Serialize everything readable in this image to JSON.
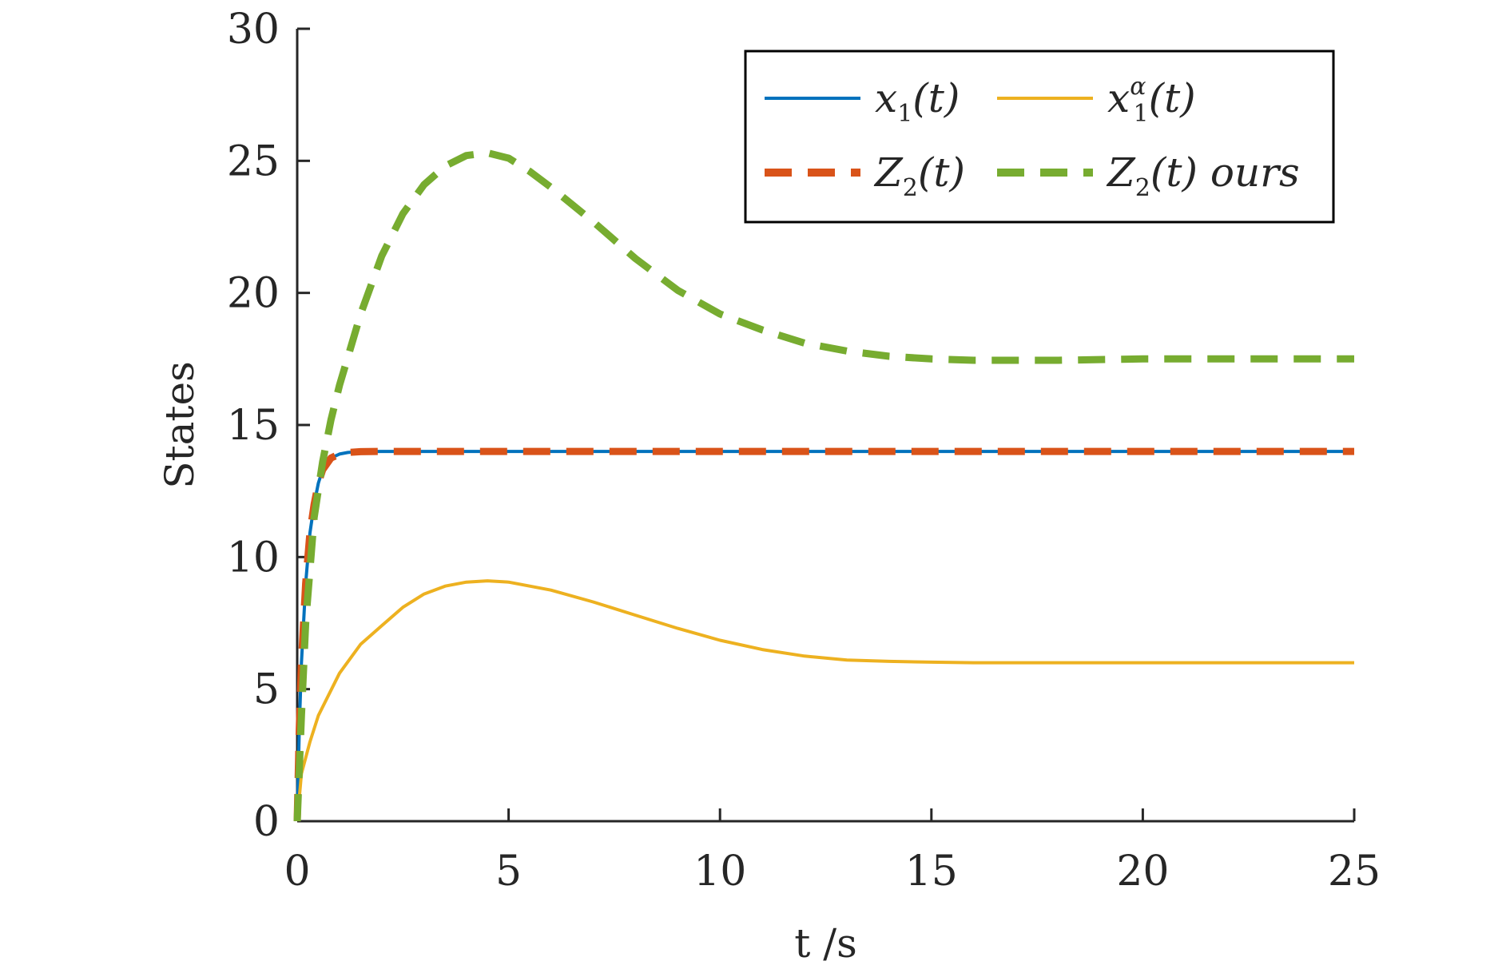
{
  "chart_data": {
    "type": "line",
    "title": "",
    "xlabel": "t /s",
    "ylabel": "States",
    "xlim": [
      0,
      25
    ],
    "ylim": [
      0,
      30
    ],
    "xticks": [
      0,
      5,
      10,
      15,
      20,
      25
    ],
    "yticks": [
      0,
      5,
      10,
      15,
      20,
      25,
      30
    ],
    "xtick_labels": [
      "0",
      "5",
      "10",
      "15",
      "20",
      "25"
    ],
    "ytick_labels": [
      "0",
      "5",
      "10",
      "15",
      "20",
      "25",
      "30"
    ],
    "grid": false,
    "legend_position": "top-right",
    "legend_columns": 2,
    "series": [
      {
        "name": "x1(t)",
        "color": "#0072BD",
        "style": "solid",
        "x": [
          0,
          0.05,
          0.1,
          0.2,
          0.3,
          0.4,
          0.5,
          0.6,
          0.8,
          1.0,
          1.2,
          1.5,
          2,
          3,
          5,
          10,
          15,
          20,
          25
        ],
        "y": [
          0,
          3.5,
          6.0,
          9.0,
          10.9,
          12.0,
          12.8,
          13.3,
          13.75,
          13.9,
          13.96,
          13.99,
          14.0,
          14.0,
          14.0,
          14.0,
          14.0,
          14.0,
          14.0
        ]
      },
      {
        "name": "x1α(t)",
        "color": "#EDB120",
        "style": "solid",
        "x": [
          0,
          0.1,
          0.3,
          0.5,
          1.0,
          1.5,
          2.0,
          2.5,
          3.0,
          3.5,
          4.0,
          4.5,
          5.0,
          6.0,
          7.0,
          8.0,
          9.0,
          10.0,
          11.0,
          12.0,
          13.0,
          14.0,
          15.0,
          16.0,
          18.0,
          20.0,
          22.0,
          25.0
        ],
        "y": [
          0,
          1.8,
          3.0,
          4.0,
          5.6,
          6.7,
          7.4,
          8.1,
          8.6,
          8.9,
          9.05,
          9.1,
          9.05,
          8.75,
          8.3,
          7.8,
          7.3,
          6.85,
          6.5,
          6.25,
          6.1,
          6.05,
          6.02,
          6.0,
          6.0,
          6.0,
          6.0,
          6.0
        ]
      },
      {
        "name": "Z2(t)",
        "color": "#D95319",
        "style": "dashed",
        "x": [
          0,
          0.05,
          0.1,
          0.2,
          0.3,
          0.4,
          0.5,
          0.6,
          0.8,
          1.0,
          1.2,
          1.5,
          2,
          3,
          5,
          10,
          15,
          20,
          25
        ],
        "y": [
          0,
          3.5,
          6.0,
          9.0,
          10.9,
          12.0,
          12.8,
          13.3,
          13.75,
          13.9,
          13.96,
          13.99,
          14.0,
          14.0,
          14.0,
          14.0,
          14.0,
          14.0,
          14.0
        ]
      },
      {
        "name": "Z2(t) ours",
        "color": "#77AC30",
        "style": "dashed",
        "x": [
          0,
          0.1,
          0.2,
          0.4,
          0.6,
          0.8,
          1.0,
          1.5,
          2.0,
          2.5,
          3.0,
          3.5,
          4.0,
          4.5,
          5.0,
          5.5,
          6.0,
          7.0,
          8.0,
          9.0,
          10.0,
          11.0,
          12.0,
          13.0,
          14.0,
          15.0,
          16.0,
          17.0,
          18.0,
          20.0,
          22.0,
          25.0
        ],
        "y": [
          0,
          4.0,
          7.5,
          11.5,
          13.6,
          15.2,
          16.5,
          19.2,
          21.4,
          23.0,
          24.1,
          24.8,
          25.2,
          25.3,
          25.1,
          24.6,
          24.0,
          22.7,
          21.3,
          20.1,
          19.2,
          18.6,
          18.1,
          17.8,
          17.6,
          17.5,
          17.45,
          17.45,
          17.45,
          17.5,
          17.5,
          17.5
        ]
      }
    ]
  },
  "legend": {
    "entries": [
      {
        "base": "x",
        "sub": "1",
        "sup": "",
        "suffix": "(t)"
      },
      {
        "base": "x",
        "sub": "1",
        "sup": "α",
        "suffix": "(t)"
      },
      {
        "base": "Z",
        "sub": "2",
        "sup": "",
        "suffix": "(t)"
      },
      {
        "base": "Z",
        "sub": "2",
        "sup": "",
        "suffix": "(t) ours"
      }
    ]
  },
  "colors": {
    "axis": "#262626",
    "background": "#ffffff"
  }
}
